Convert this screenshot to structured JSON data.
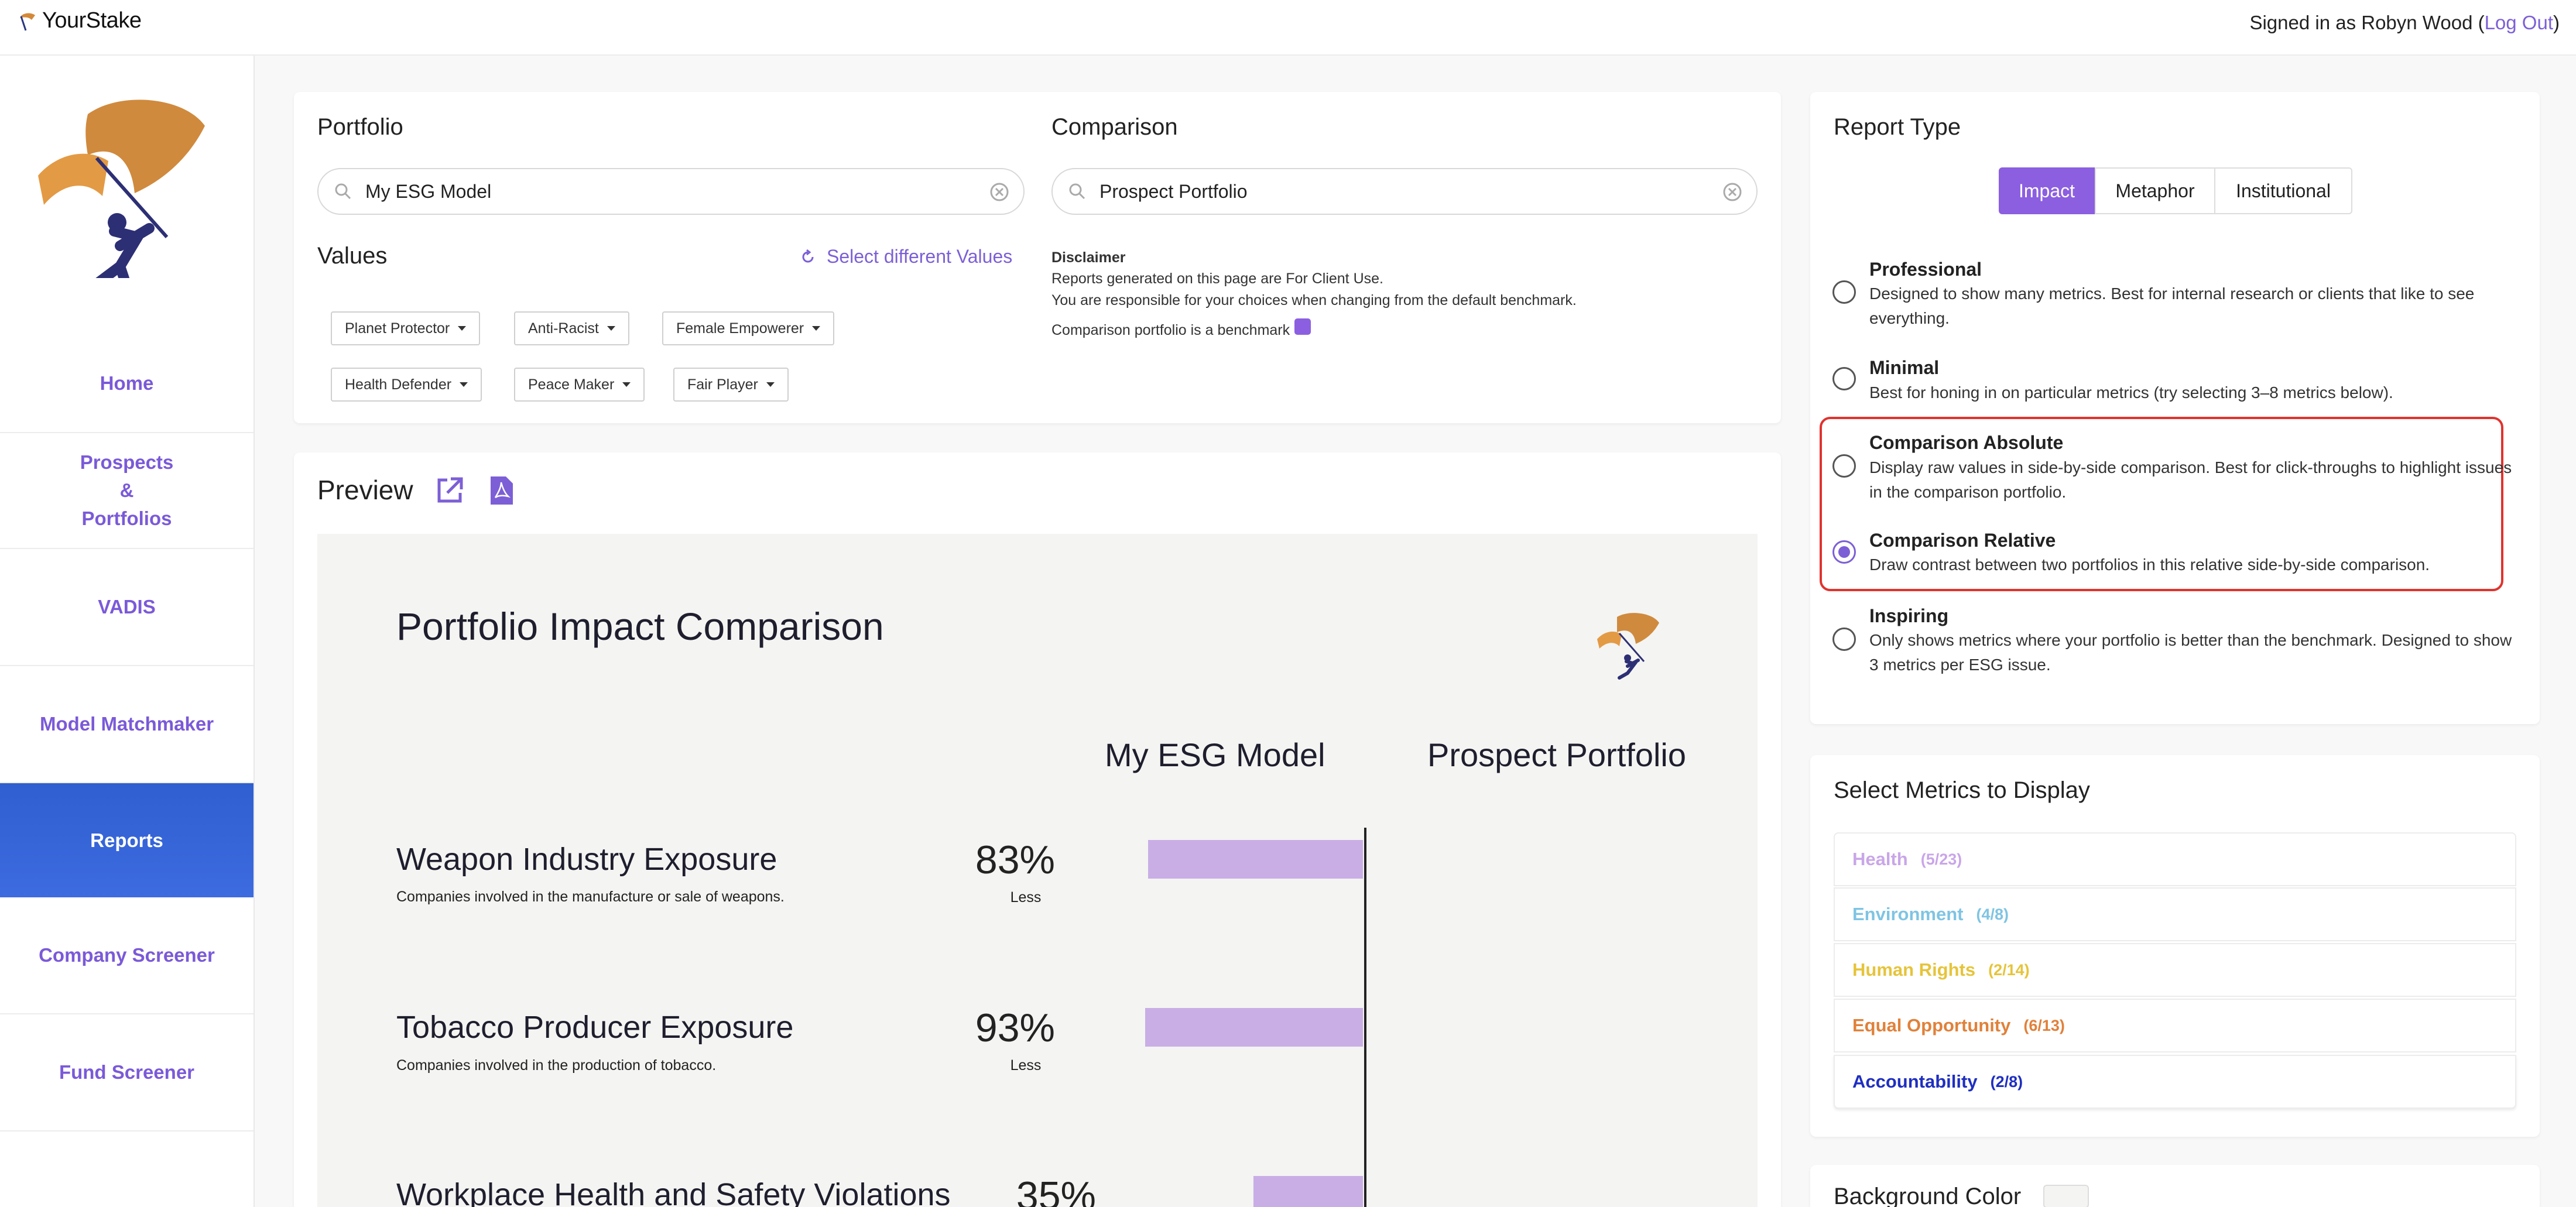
{
  "brand": {
    "name": "YourStake"
  },
  "header": {
    "signed_in_prefix": "Signed in as Robyn Wood (",
    "logout": "Log Out",
    "signed_in_suffix": ")"
  },
  "sidebar": {
    "items": [
      {
        "label": "Home"
      },
      {
        "label": "Prospects\n&\nPortfolios"
      },
      {
        "label": "VADIS"
      },
      {
        "label": "Model Matchmaker"
      },
      {
        "label": "Reports",
        "active": true
      },
      {
        "label": "Company Screener"
      },
      {
        "label": "Fund Screener"
      }
    ]
  },
  "portfolio": {
    "heading": "Portfolio",
    "value": "My ESG Model"
  },
  "comparison": {
    "heading": "Comparison",
    "value": "Prospect Portfolio"
  },
  "values": {
    "heading": "Values",
    "select_link": "Select different Values",
    "filters": [
      "Planet Protector",
      "Anti-Racist",
      "Female Empowerer",
      "Health Defender",
      "Peace Maker",
      "Fair Player"
    ]
  },
  "disclaimer": {
    "title": "Disclaimer",
    "line1": "Reports generated on this page are For Client Use.",
    "line2": "You are responsible for your choices when changing from the default benchmark.",
    "line3": "Comparison portfolio is a benchmark"
  },
  "preview": {
    "heading": "Preview",
    "title": "Portfolio Impact Comparison",
    "col1": "My ESG Model",
    "col2": "Prospect Portfolio",
    "metrics": [
      {
        "title": "Weapon Industry Exposure",
        "desc": "Companies involved in the manufacture or sale of weapons.",
        "pct": "83%",
        "value": 0.83,
        "note": "Less"
      },
      {
        "title": "Tobacco Producer Exposure",
        "desc": "Companies involved in the production of tobacco.",
        "pct": "93%",
        "value": 0.93,
        "note": "Less"
      },
      {
        "title": "Workplace Health and Safety Violations",
        "desc": "",
        "pct": "35%",
        "value": 0.35,
        "note": ""
      }
    ]
  },
  "report_type": {
    "heading": "Report Type",
    "tabs": [
      "Impact",
      "Metaphor",
      "Institutional"
    ],
    "active_tab": "Impact",
    "options": [
      {
        "title": "Professional",
        "desc": "Designed to show many metrics. Best for internal research or clients that like to see everything.",
        "selected": false
      },
      {
        "title": "Minimal",
        "desc": "Best for honing in on particular metrics (try selecting 3–8 metrics below).",
        "selected": false
      },
      {
        "title": "Comparison Absolute",
        "desc": "Display raw values in side-by-side comparison. Best for click-throughs to highlight issues in the comparison portfolio.",
        "selected": false
      },
      {
        "title": "Comparison Relative",
        "desc": "Draw contrast between two portfolios in this relative side-by-side comparison.",
        "selected": true
      },
      {
        "title": "Inspiring",
        "desc": "Only shows metrics where your portfolio is better than the benchmark. Designed to show 3 metrics per ESG issue.",
        "selected": false
      }
    ]
  },
  "metrics_select": {
    "heading": "Select Metrics to Display",
    "rows": [
      {
        "label": "Health",
        "count": "(5/23)",
        "color": "#c9a6e8"
      },
      {
        "label": "Environment",
        "count": "(4/8)",
        "color": "#7fc4e3"
      },
      {
        "label": "Human Rights",
        "count": "(2/14)",
        "color": "#e6c43a"
      },
      {
        "label": "Equal Opportunity",
        "count": "(6/13)",
        "color": "#e0813a"
      },
      {
        "label": "Accountability",
        "count": "(2/8)",
        "color": "#1f2fc0"
      }
    ]
  },
  "background": {
    "heading": "Background Color"
  },
  "colors": {
    "accent": "#7c5fd6",
    "active_nav": "#3563d8",
    "highlight": "#e0332e"
  }
}
